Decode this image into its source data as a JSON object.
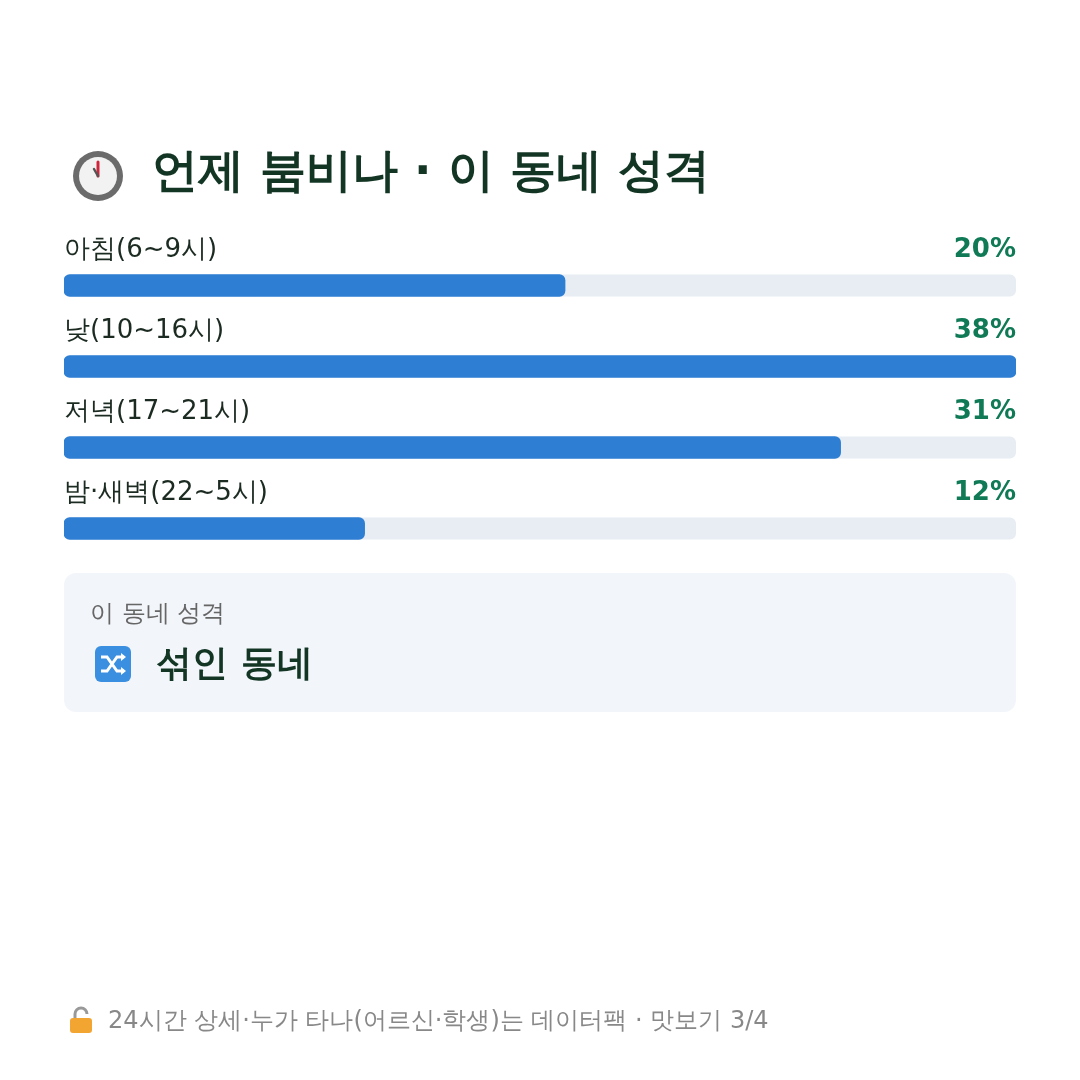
{
  "chart_data": {
    "type": "bar",
    "orientation": "horizontal",
    "title": "언제 붐비나 · 이 동네 성격",
    "categories": [
      "아침(6~9시)",
      "낮(10~16시)",
      "저녁(17~21시)",
      "밤·새벽(22~5시)"
    ],
    "values": [
      20,
      38,
      31,
      12
    ],
    "value_labels": [
      "20%",
      "38%",
      "31%",
      "12%"
    ],
    "color": "#2e7fd4",
    "legend": false,
    "annotations": [
      "이 동네 성격",
      "섞인 동네",
      "24시간 상세·누가 타나(어르신·학생)는 데이터팩 · 맛보기 3/4"
    ]
  }
}
